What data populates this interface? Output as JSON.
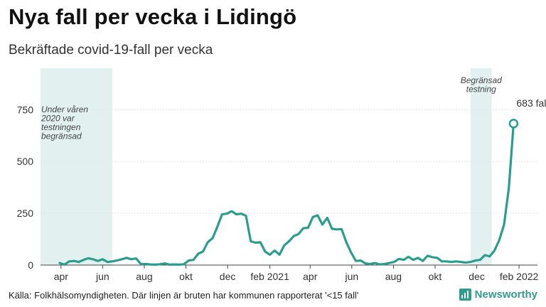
{
  "title": "Nya fall per vecka i Lidingö",
  "subtitle": "Bekräftade covid-19-fall per vecka",
  "source": "Källa: Folkhälsomyndigheten. Där linjen är bruten har kommunen rapporterat '<15 fall'",
  "brand": "Newsworthy",
  "colors": {
    "line": "#2a9d8f",
    "shade": "#e2f1ef",
    "grid": "#e6e6e6",
    "axis": "#444444"
  },
  "chart_data": {
    "type": "line",
    "x_unit": "week",
    "x_start": "2020-03-02",
    "x_end": "2022-02-28",
    "ylim": [
      0,
      950
    ],
    "yticks": [
      0,
      250,
      500,
      750
    ],
    "xticks": [
      {
        "date": "2020-04-01",
        "label": "apr"
      },
      {
        "date": "2020-06-01",
        "label": "jun"
      },
      {
        "date": "2020-08-01",
        "label": "aug"
      },
      {
        "date": "2020-10-01",
        "label": "okt"
      },
      {
        "date": "2020-12-01",
        "label": "dec"
      },
      {
        "date": "2021-02-01",
        "label": "feb 2021"
      },
      {
        "date": "2021-04-01",
        "label": "apr"
      },
      {
        "date": "2021-06-01",
        "label": "jun"
      },
      {
        "date": "2021-08-01",
        "label": "aug"
      },
      {
        "date": "2021-10-01",
        "label": "okt"
      },
      {
        "date": "2021-12-01",
        "label": "dec"
      },
      {
        "date": "2022-02-01",
        "label": "feb 2022"
      }
    ],
    "shaded_regions": [
      {
        "start": "2020-03-02",
        "end": "2020-06-15",
        "label": [
          "Under våren",
          "2020 var",
          "testningen",
          "begränsad"
        ]
      },
      {
        "start": "2021-11-22",
        "end": "2021-12-23",
        "label": [
          "Begränsad",
          "testning"
        ]
      }
    ],
    "series": [
      {
        "values": [
          {
            "date": "2020-03-30",
            "value": 10
          },
          {
            "date": "2020-04-06",
            "value": 2
          },
          {
            "date": "2020-04-13",
            "value": 18
          },
          {
            "date": "2020-04-20",
            "value": 20
          },
          {
            "date": "2020-04-27",
            "value": 15
          },
          {
            "date": "2020-05-04",
            "value": 25
          },
          {
            "date": "2020-05-11",
            "value": 33
          },
          {
            "date": "2020-05-18",
            "value": 28
          },
          {
            "date": "2020-05-25",
            "value": 20
          },
          {
            "date": "2020-06-01",
            "value": 28
          },
          {
            "date": "2020-06-08",
            "value": 15
          },
          {
            "date": "2020-06-15",
            "value": 18
          },
          {
            "date": "2020-06-22",
            "value": 22
          },
          {
            "date": "2020-06-29",
            "value": 28
          },
          {
            "date": "2020-07-06",
            "value": 35
          },
          {
            "date": "2020-07-13",
            "value": 28
          },
          {
            "date": "2020-07-20",
            "value": 32
          },
          {
            "date": "2020-07-27",
            "value": 5
          },
          {
            "date": "2020-08-03",
            "value": 5
          },
          {
            "date": "2020-08-10",
            "value": 3
          },
          {
            "date": "2020-08-17",
            "value": 2
          },
          {
            "date": "2020-08-24",
            "value": 4
          },
          {
            "date": "2020-08-31",
            "value": 8
          },
          {
            "date": "2020-09-07",
            "value": 2
          },
          {
            "date": "2020-09-14",
            "value": 3
          },
          {
            "date": "2020-09-21",
            "value": 2
          },
          {
            "date": "2020-09-28",
            "value": 4
          },
          {
            "date": "2020-10-05",
            "value": 22
          },
          {
            "date": "2020-10-12",
            "value": 25
          },
          {
            "date": "2020-10-19",
            "value": 55
          },
          {
            "date": "2020-10-26",
            "value": 65
          },
          {
            "date": "2020-11-02",
            "value": 110
          },
          {
            "date": "2020-11-09",
            "value": 130
          },
          {
            "date": "2020-11-16",
            "value": 185
          },
          {
            "date": "2020-11-23",
            "value": 245
          },
          {
            "date": "2020-11-30",
            "value": 248
          },
          {
            "date": "2020-12-07",
            "value": 260
          },
          {
            "date": "2020-12-14",
            "value": 245
          },
          {
            "date": "2020-12-21",
            "value": 248
          },
          {
            "date": "2020-12-28",
            "value": 238
          },
          {
            "date": "2021-01-04",
            "value": 115
          },
          {
            "date": "2021-01-11",
            "value": 108
          },
          {
            "date": "2021-01-18",
            "value": 110
          },
          {
            "date": "2021-01-25",
            "value": 65
          },
          {
            "date": "2021-02-01",
            "value": 50
          },
          {
            "date": "2021-02-08",
            "value": 70
          },
          {
            "date": "2021-02-15",
            "value": 50
          },
          {
            "date": "2021-02-22",
            "value": 95
          },
          {
            "date": "2021-03-01",
            "value": 115
          },
          {
            "date": "2021-03-08",
            "value": 140
          },
          {
            "date": "2021-03-15",
            "value": 150
          },
          {
            "date": "2021-03-22",
            "value": 178
          },
          {
            "date": "2021-03-29",
            "value": 180
          },
          {
            "date": "2021-04-05",
            "value": 232
          },
          {
            "date": "2021-04-12",
            "value": 240
          },
          {
            "date": "2021-04-19",
            "value": 195
          },
          {
            "date": "2021-04-26",
            "value": 228
          },
          {
            "date": "2021-05-03",
            "value": 175
          },
          {
            "date": "2021-05-10",
            "value": 172
          },
          {
            "date": "2021-05-17",
            "value": 174
          },
          {
            "date": "2021-05-24",
            "value": 110
          },
          {
            "date": "2021-05-31",
            "value": 60
          },
          {
            "date": "2021-06-07",
            "value": 20
          },
          {
            "date": "2021-06-14",
            "value": 22
          },
          {
            "date": "2021-06-21",
            "value": 8
          },
          {
            "date": "2021-06-28",
            "value": 5
          },
          {
            "date": "2021-07-05",
            "value": 10
          },
          {
            "date": "2021-07-12",
            "value": 3
          },
          {
            "date": "2021-07-19",
            "value": 5
          },
          {
            "date": "2021-07-26",
            "value": 10
          },
          {
            "date": "2021-08-02",
            "value": 15
          },
          {
            "date": "2021-08-09",
            "value": 30
          },
          {
            "date": "2021-08-16",
            "value": 25
          },
          {
            "date": "2021-08-23",
            "value": 40
          },
          {
            "date": "2021-08-30",
            "value": 25
          },
          {
            "date": "2021-09-06",
            "value": 35
          },
          {
            "date": "2021-09-13",
            "value": 20
          },
          {
            "date": "2021-09-20",
            "value": 45
          },
          {
            "date": "2021-09-27",
            "value": 38
          },
          {
            "date": "2021-10-04",
            "value": 35
          },
          {
            "date": "2021-10-11",
            "value": 18
          },
          {
            "date": "2021-10-18",
            "value": 18
          },
          {
            "date": "2021-10-25",
            "value": 15
          },
          {
            "date": "2021-11-01",
            "value": 18
          },
          {
            "date": "2021-11-08",
            "value": 15
          },
          {
            "date": "2021-11-15",
            "value": 12
          },
          {
            "date": "2021-11-22",
            "value": 15
          },
          {
            "date": "2021-11-29",
            "value": 22
          },
          {
            "date": "2021-12-06",
            "value": 25
          },
          {
            "date": "2021-12-13",
            "value": 48
          },
          {
            "date": "2021-12-20",
            "value": 42
          },
          {
            "date": "2021-12-27",
            "value": 70
          },
          {
            "date": "2022-01-03",
            "value": 120
          },
          {
            "date": "2022-01-10",
            "value": 195
          },
          {
            "date": "2022-01-17",
            "value": 370
          },
          {
            "date": "2022-01-24",
            "value": 683
          }
        ]
      }
    ],
    "annotations": [
      {
        "date": "2022-01-24",
        "value": 683,
        "text": "683 fall"
      }
    ]
  }
}
